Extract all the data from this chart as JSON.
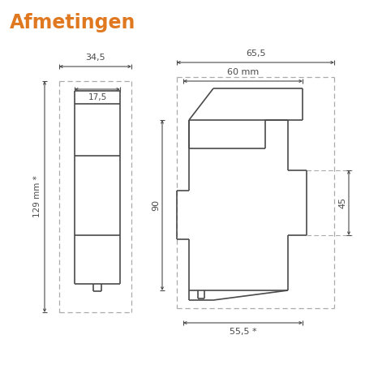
{
  "title": "Afmetingen",
  "title_color": "#E07820",
  "bg_color": "#ffffff",
  "line_color": "#4a4a4a",
  "dim_color": "#4a4a4a",
  "dashed_color": "#aaaaaa",
  "front_view": {
    "label_34_5": "34,5",
    "label_17_5": "17,5",
    "label_129": "129 mm *"
  },
  "side_view": {
    "label_65_5": "65,5",
    "label_60": "60 mm",
    "label_90": "90",
    "label_45": "45",
    "label_55_5": "55,5 *"
  }
}
